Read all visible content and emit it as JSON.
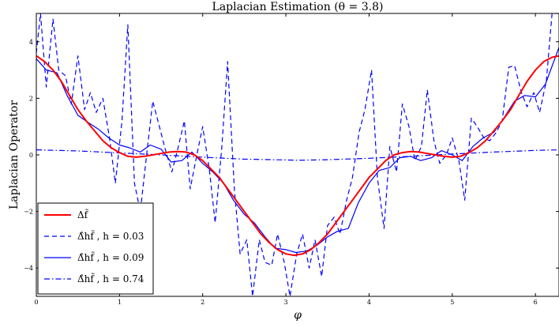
{
  "chart_data": {
    "type": "line",
    "title": "Laplacian Estimation (θ = 3.8)",
    "xlabel": "φ",
    "ylabel": "Laplacian Operator",
    "xlim": [
      0,
      6.2832
    ],
    "ylim": [
      -5,
      5
    ],
    "xticks": [
      "0",
      "1",
      "2",
      "3",
      "4",
      "5",
      "6"
    ],
    "yticks": [
      "4",
      "2",
      "0",
      "−2",
      "−4"
    ],
    "grid": false,
    "legend_position": "lower-left",
    "series": [
      {
        "name": "Δf̃",
        "color": "#ff0000",
        "style": "solid",
        "x": [
          0,
          0.1,
          0.2,
          0.3,
          0.4,
          0.5,
          0.6,
          0.7,
          0.8,
          0.9,
          1.0,
          1.1,
          1.2,
          1.3,
          1.4,
          1.5,
          1.6,
          1.7,
          1.8,
          1.9,
          2.0,
          2.1,
          2.2,
          2.3,
          2.4,
          2.5,
          2.6,
          2.7,
          2.8,
          2.9,
          3.0,
          3.1,
          3.2,
          3.3,
          3.4,
          3.5,
          3.6,
          3.7,
          3.8,
          3.9,
          4.0,
          4.1,
          4.2,
          4.3,
          4.4,
          4.5,
          4.6,
          4.7,
          4.8,
          4.9,
          5.0,
          5.1,
          5.2,
          5.3,
          5.4,
          5.5,
          5.6,
          5.7,
          5.8,
          5.9,
          6.0,
          6.1,
          6.2,
          6.2832
        ],
        "y": [
          3.5,
          3.3,
          3.0,
          2.6,
          2.1,
          1.6,
          1.2,
          0.85,
          0.5,
          0.25,
          0.08,
          -0.05,
          -0.08,
          -0.05,
          0.0,
          0.05,
          0.1,
          0.12,
          0.1,
          0.0,
          -0.2,
          -0.5,
          -0.8,
          -1.2,
          -1.6,
          -2.0,
          -2.4,
          -2.8,
          -3.1,
          -3.35,
          -3.5,
          -3.55,
          -3.5,
          -3.35,
          -3.1,
          -2.8,
          -2.4,
          -2.0,
          -1.6,
          -1.2,
          -0.8,
          -0.5,
          -0.2,
          0.0,
          0.08,
          0.12,
          0.1,
          0.05,
          0.0,
          -0.05,
          -0.08,
          -0.05,
          0.08,
          0.25,
          0.5,
          0.85,
          1.2,
          1.6,
          2.1,
          2.6,
          3.0,
          3.3,
          3.45,
          3.5
        ]
      },
      {
        "name": "Δ̂hf̃ , h = 0.03",
        "color": "#0000ff",
        "style": "dashed",
        "x": [
          0,
          0.05,
          0.12,
          0.2,
          0.27,
          0.35,
          0.42,
          0.5,
          0.58,
          0.65,
          0.72,
          0.8,
          0.88,
          0.95,
          1.03,
          1.1,
          1.18,
          1.25,
          1.33,
          1.4,
          1.48,
          1.55,
          1.63,
          1.7,
          1.78,
          1.85,
          1.93,
          2.0,
          2.08,
          2.15,
          2.23,
          2.3,
          2.38,
          2.45,
          2.53,
          2.6,
          2.68,
          2.75,
          2.83,
          2.9,
          2.98,
          3.05,
          3.13,
          3.2,
          3.28,
          3.35,
          3.43,
          3.5,
          3.58,
          3.65,
          3.73,
          3.8,
          3.88,
          3.95,
          4.03,
          4.1,
          4.18,
          4.25,
          4.33,
          4.4,
          4.48,
          4.55,
          4.63,
          4.7,
          4.78,
          4.85,
          4.93,
          5.0,
          5.08,
          5.15,
          5.23,
          5.3,
          5.38,
          5.45,
          5.53,
          5.6,
          5.68,
          5.75,
          5.83,
          5.9,
          5.98,
          6.05,
          6.13,
          6.2,
          6.2832
        ],
        "y": [
          3.6,
          5.0,
          2.4,
          4.8,
          3.0,
          2.8,
          1.8,
          3.5,
          1.6,
          2.2,
          1.5,
          2.0,
          0.6,
          -1.0,
          1.2,
          4.6,
          -1.0,
          -2.0,
          0.1,
          1.9,
          1.0,
          0.2,
          -0.6,
          0.2,
          1.2,
          -1.2,
          0.0,
          1.0,
          -0.5,
          -2.4,
          0.3,
          3.3,
          -1.2,
          -3.5,
          -3.0,
          -5.0,
          -3.0,
          -3.8,
          -3.9,
          -2.8,
          -3.8,
          -5.0,
          -3.5,
          -2.8,
          -4.0,
          -3.0,
          -4.3,
          -2.5,
          -2.2,
          -2.8,
          -1.6,
          -0.8,
          0.8,
          1.6,
          3.0,
          -0.8,
          -2.6,
          0.3,
          -0.6,
          1.8,
          1.0,
          -0.2,
          0.3,
          2.3,
          0.5,
          -0.3,
          0.0,
          0.6,
          -0.2,
          -1.6,
          1.3,
          1.0,
          0.6,
          0.5,
          0.8,
          1.2,
          3.1,
          3.15,
          2.2,
          1.7,
          2.2,
          1.5,
          2.6,
          5.0,
          5.0
        ]
      },
      {
        "name": "Δ̂hf̃ , h = 0.09",
        "color": "#0000ff",
        "style": "solid",
        "x": [
          0,
          0.12,
          0.25,
          0.37,
          0.5,
          0.62,
          0.75,
          0.87,
          1.0,
          1.12,
          1.25,
          1.37,
          1.5,
          1.62,
          1.75,
          1.87,
          2.0,
          2.12,
          2.25,
          2.37,
          2.5,
          2.62,
          2.75,
          2.87,
          3.0,
          3.12,
          3.25,
          3.37,
          3.5,
          3.62,
          3.75,
          3.87,
          4.0,
          4.12,
          4.25,
          4.37,
          4.5,
          4.62,
          4.75,
          4.87,
          5.0,
          5.12,
          5.25,
          5.37,
          5.5,
          5.62,
          5.75,
          5.87,
          6.0,
          6.12,
          6.2832
        ],
        "y": [
          3.4,
          3.0,
          2.9,
          2.1,
          1.4,
          1.15,
          0.9,
          0.6,
          0.35,
          0.25,
          0.1,
          0.35,
          0.2,
          -0.25,
          -0.2,
          0.1,
          -0.3,
          -0.6,
          -1.0,
          -1.6,
          -2.1,
          -2.4,
          -2.9,
          -3.3,
          -3.35,
          -3.45,
          -3.4,
          -3.2,
          -2.9,
          -2.7,
          -2.6,
          -1.7,
          -1.0,
          -0.55,
          -0.45,
          -0.1,
          -0.05,
          -0.2,
          -0.1,
          0.15,
          0.0,
          -0.2,
          0.3,
          0.6,
          0.8,
          1.3,
          1.9,
          2.1,
          2.05,
          2.5,
          3.8
        ]
      },
      {
        "name": "Δ̂hf̃ , h = 0.74",
        "color": "#0000ff",
        "style": "dashdot",
        "x": [
          0,
          0.5,
          1.0,
          1.5,
          2.0,
          2.5,
          3.0,
          3.14,
          3.5,
          4.0,
          4.5,
          5.0,
          5.5,
          6.0,
          6.2832
        ],
        "y": [
          0.18,
          0.14,
          0.07,
          0.0,
          -0.08,
          -0.15,
          -0.18,
          -0.19,
          -0.17,
          -0.12,
          -0.05,
          0.03,
          0.1,
          0.16,
          0.18
        ]
      }
    ]
  }
}
